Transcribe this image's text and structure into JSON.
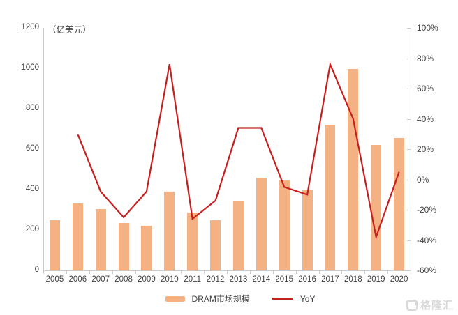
{
  "chart_data": {
    "type": "bar+line combo",
    "title": "",
    "categories": [
      "2005",
      "2006",
      "2007",
      "2008",
      "2009",
      "2010",
      "2011",
      "2012",
      "2013",
      "2014",
      "2015",
      "2016",
      "2017",
      "2018",
      "2019",
      "2020"
    ],
    "series": [
      {
        "name": "DRAM市场规模",
        "type": "bar",
        "axis": "left",
        "values": [
          250,
          330,
          305,
          235,
          220,
          390,
          285,
          250,
          345,
          460,
          445,
          400,
          720,
          995,
          620,
          655
        ]
      },
      {
        "name": "YoY",
        "type": "line",
        "axis": "right",
        "values": [
          null,
          30,
          -8,
          -25,
          -8,
          76,
          -26,
          -14,
          34,
          34,
          -5,
          -10,
          76,
          40,
          -38,
          5
        ]
      }
    ],
    "left_axis": {
      "title": "（亿美元）",
      "min": 0,
      "max": 1200,
      "step": 200,
      "tick_labels": [
        "0",
        "200",
        "400",
        "600",
        "800",
        "1000",
        "1200"
      ]
    },
    "right_axis": {
      "min": -60,
      "max": 100,
      "step": 20,
      "tick_labels": [
        "-60%",
        "-40%",
        "-20%",
        "0%",
        "20%",
        "40%",
        "60%",
        "80%",
        "100%"
      ]
    },
    "legend_position": "bottom",
    "grid": false,
    "colors": {
      "bar": "#F4B183",
      "line": "#C81E1E",
      "axis": "#C9C9C9",
      "text": "#404040"
    }
  },
  "watermark": {
    "text": "格隆汇"
  }
}
